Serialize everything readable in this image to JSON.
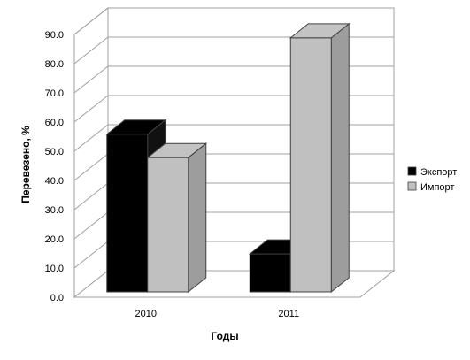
{
  "chart_data": {
    "type": "bar",
    "title": "",
    "xlabel": "Годы",
    "ylabel": "Перевезено, %",
    "ylim": [
      0,
      90
    ],
    "yticks": [
      "0.0",
      "10.0",
      "20.0",
      "30.0",
      "40.0",
      "50.0",
      "60.0",
      "70.0",
      "80.0",
      "90.0"
    ],
    "categories": [
      "2010",
      "2011"
    ],
    "series": [
      {
        "name": "Экспорт",
        "values": [
          54,
          13
        ],
        "color": "#000000"
      },
      {
        "name": "Импорт",
        "values": [
          46,
          87
        ],
        "color": "#c0c0c0"
      }
    ],
    "grid": true,
    "legend_position": "right",
    "style": "3d-clustered-column"
  }
}
